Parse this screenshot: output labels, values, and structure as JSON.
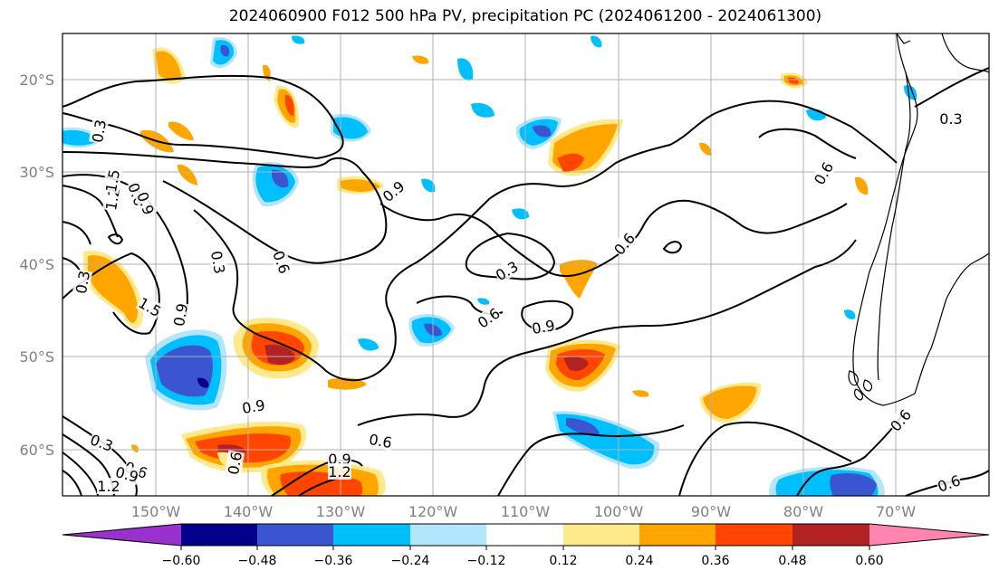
{
  "title": "2024060900 F012 500 hPa PV, precipitation PC (2024061200 - 2024061300)",
  "lat_labels": [
    "20°S",
    "30°S",
    "40°S",
    "50°S",
    "60°S"
  ],
  "lon_labels": [
    "150°W",
    "140°W",
    "130°W",
    "120°W",
    "110°W",
    "100°W",
    "90°W",
    "80°W",
    "70°W"
  ],
  "colorbar": {
    "ticks": [
      "−0.60",
      "−0.48",
      "−0.36",
      "−0.24",
      "−0.12",
      "0.12",
      "0.24",
      "0.36",
      "0.48",
      "0.60"
    ],
    "colors": [
      "#9932CC",
      "#00008B",
      "#3A55CF",
      "#00BFFF",
      "#B3E5FC",
      "#FFFFFF",
      "#FFE98A",
      "#FFA500",
      "#FF4500",
      "#B22222",
      "#FF85B0"
    ]
  },
  "contour_labels": [
    "0.3",
    "0.6",
    "0.9",
    "1.2",
    "1.5",
    "0.3",
    "0.6",
    "0.9",
    "0.3",
    "0.9",
    "0.6",
    "0.6",
    "0.9",
    "0.6",
    "0.6",
    "0.3",
    "0.9",
    "1.2",
    "0.6",
    "0.3",
    "0.6",
    "0.9",
    "1.2",
    "1.5",
    "0.9",
    "0.3",
    "0.6",
    "0.6"
  ]
}
